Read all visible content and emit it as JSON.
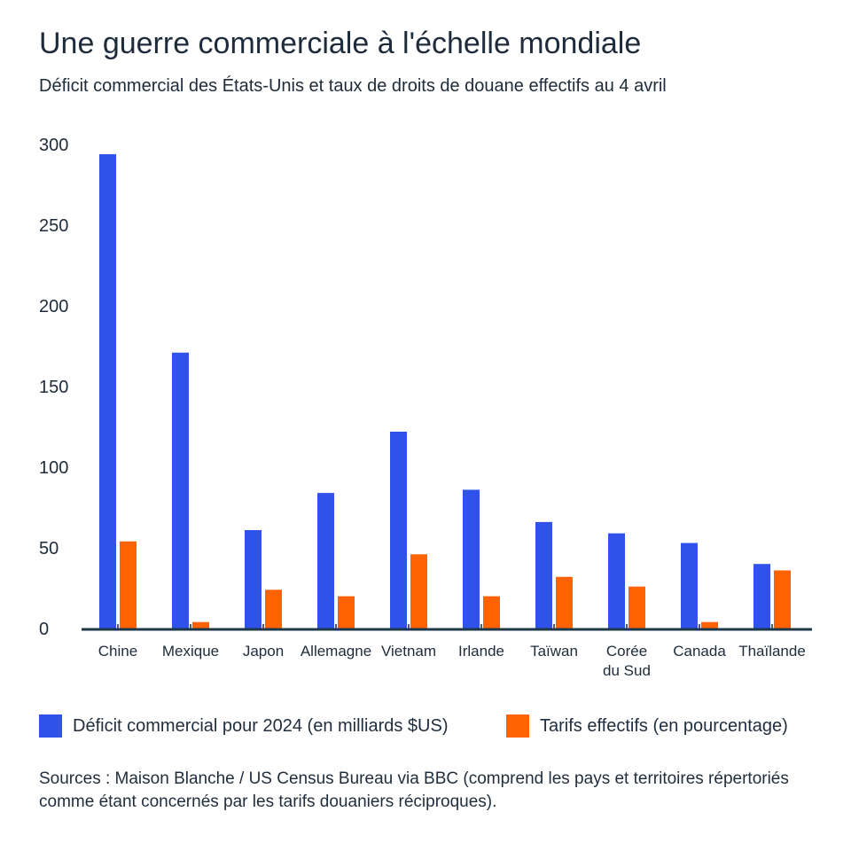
{
  "title": "Une guerre commerciale à l'échelle mondiale",
  "subtitle": "Déficit commercial des États-Unis et taux de droits de douane effectifs au 4 avril",
  "chart_data": {
    "type": "bar",
    "categories": [
      "Chine",
      "Mexique",
      "Japon",
      "Allemagne",
      "Vietnam",
      "Irlande",
      "Taïwan",
      "Corée du Sud",
      "Canada",
      "Thaïlande"
    ],
    "series": [
      {
        "name": "Déficit commercial pour 2024 (en milliards $US)",
        "color": "#3052ea",
        "values": [
          294,
          171,
          61,
          84,
          122,
          86,
          66,
          59,
          53,
          40
        ]
      },
      {
        "name": "Tarifs effectifs (en pourcentage)",
        "color": "#ff6200",
        "values": [
          54,
          4,
          24,
          20,
          46,
          20,
          32,
          26,
          4,
          36
        ]
      }
    ],
    "yticks": [
      0,
      50,
      100,
      150,
      200,
      250,
      300
    ],
    "ylim": [
      0,
      300
    ],
    "grid": false,
    "legend": "bottom"
  },
  "source": "Sources : Maison Blanche / US Census Bureau via BBC (comprend les pays et territoires répertoriés comme étant concernés par les tarifs douaniers réciproques)."
}
